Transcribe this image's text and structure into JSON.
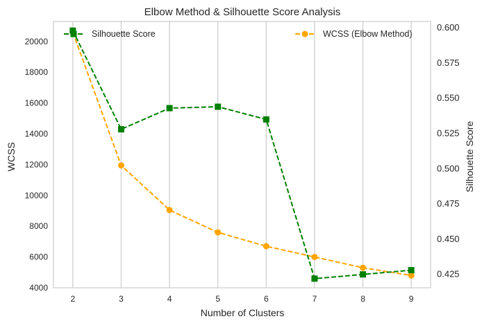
{
  "chart_data": {
    "type": "line",
    "title": "Elbow Method & Silhouette Score Analysis",
    "xlabel": "Number of Clusters",
    "x": [
      2,
      3,
      4,
      5,
      6,
      7,
      8,
      9
    ],
    "xticks": [
      "2",
      "3",
      "4",
      "5",
      "6",
      "7",
      "8",
      "9"
    ],
    "xlim": [
      1.6,
      9.4
    ],
    "grid": "vertical",
    "left_axis": {
      "label": "WCSS",
      "ylim": [
        4000,
        21300
      ],
      "ticks": [
        4000,
        6000,
        8000,
        10000,
        12000,
        14000,
        16000,
        18000,
        20000
      ],
      "tick_labels": [
        "4000",
        "6000",
        "8000",
        "10000",
        "12000",
        "14000",
        "16000",
        "18000",
        "20000"
      ]
    },
    "right_axis": {
      "label": "Silhouette Score",
      "ylim": [
        0.4155,
        0.6045
      ],
      "ticks": [
        0.425,
        0.45,
        0.475,
        0.5,
        0.525,
        0.55,
        0.575,
        0.6
      ],
      "tick_labels": [
        "0.425",
        "0.450",
        "0.475",
        "0.500",
        "0.525",
        "0.550",
        "0.575",
        "0.600"
      ]
    },
    "series": [
      {
        "name": "WCSS (Elbow Method)",
        "axis": "left",
        "color": "#ffa500",
        "marker": "circle",
        "linestyle": "dashed",
        "values": [
          20600,
          11950,
          9050,
          7600,
          6700,
          6000,
          5300,
          4800
        ]
      },
      {
        "name": "Silhouette Score",
        "axis": "right",
        "color": "#008000",
        "marker": "square",
        "linestyle": "dashed",
        "values": [
          0.598,
          0.528,
          0.543,
          0.544,
          0.535,
          0.422,
          0.425,
          0.428
        ]
      }
    ],
    "legend": [
      {
        "name": "Silhouette Score",
        "placement": "upper-left"
      },
      {
        "name": "WCSS (Elbow Method)",
        "placement": "upper-right"
      }
    ]
  }
}
